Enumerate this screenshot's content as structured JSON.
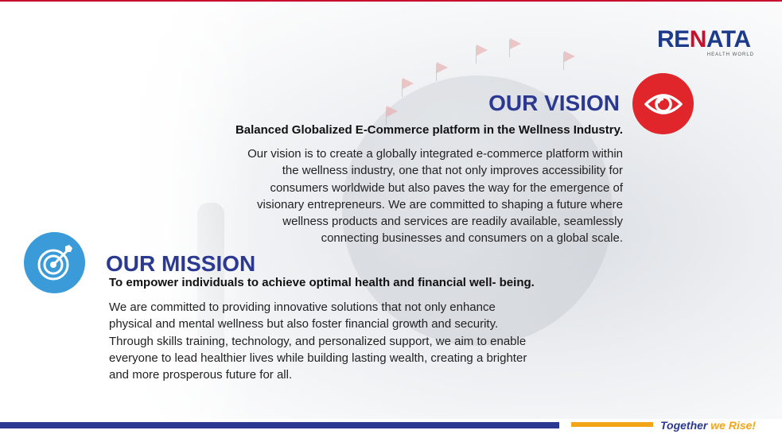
{
  "brand": {
    "logo_word_part1": "RE",
    "logo_word_part2": "N",
    "logo_word_part3": "ATA",
    "logo_subtitle": "HEALTH WORLD",
    "tagline_part1": "Together",
    "tagline_part2": "we Rise!",
    "colors": {
      "primary": "#2b3990",
      "accent_red": "#e0262a",
      "accent_blue": "#3a9bd8",
      "accent_orange": "#f2a516"
    }
  },
  "vision": {
    "icon": "eye-icon",
    "title": "OUR VISION",
    "subtitle": "Balanced Globalized E-Commerce platform in the Wellness Industry.",
    "body_lines": [
      "Our vision is to create a globally integrated e-commerce platform within",
      "the wellness industry, one that not only improves accessibility for",
      "consumers worldwide but also paves the way for the emergence of",
      "visionary entrepreneurs. We are committed to shaping a future where",
      "wellness products and services are readily available, seamlessly",
      "connecting businesses and consumers on a global scale."
    ]
  },
  "mission": {
    "icon": "target-icon",
    "title": "OUR MISSION",
    "subtitle": "To empower individuals to achieve optimal health and financial well- being.",
    "body_lines": [
      "We are committed to providing innovative solutions that not only enhance",
      "physical and mental wellness but also foster financial growth and security.",
      "Through skills training, technology, and personalized support, we aim to enable",
      "everyone to lead healthier lives while building lasting wealth, creating a brighter",
      "and more prosperous future for all."
    ]
  }
}
